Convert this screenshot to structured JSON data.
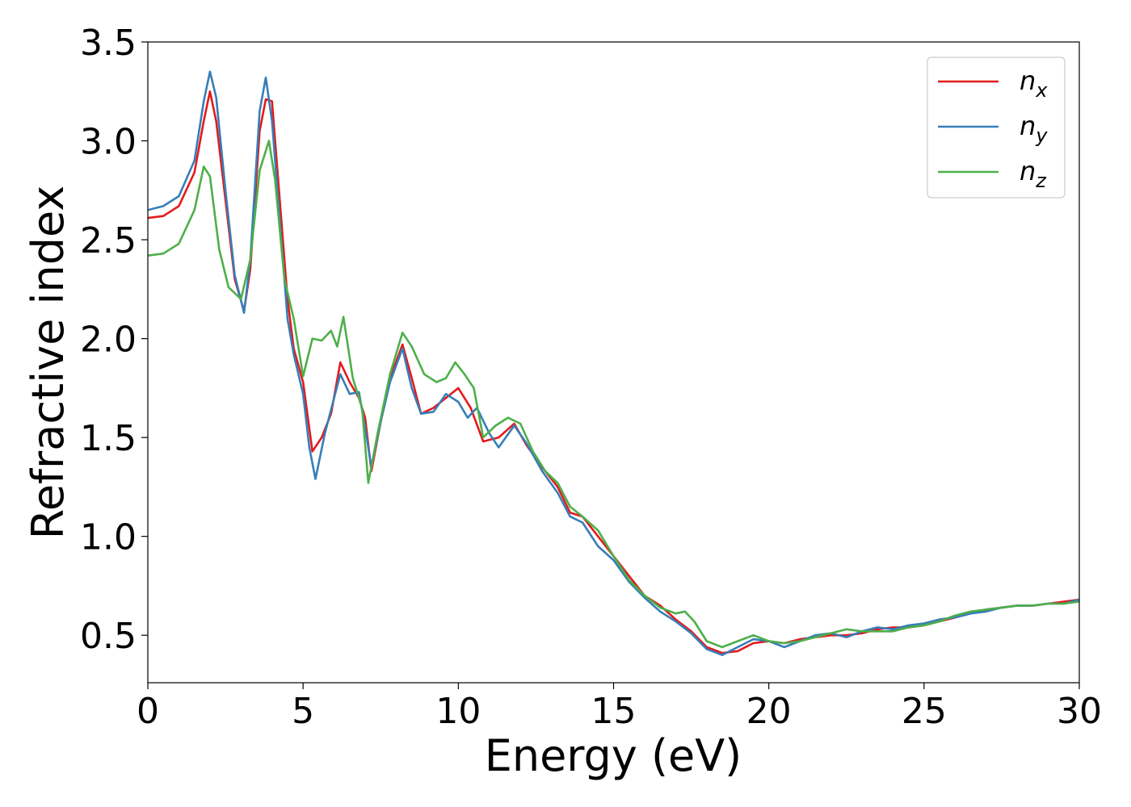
{
  "chart_data": {
    "type": "line",
    "xlabel": "Energy (eV)",
    "ylabel": "Refractive index",
    "xlim": [
      0,
      30
    ],
    "ylim": [
      0.26,
      3.5
    ],
    "xticks": [
      "0",
      "5",
      "10",
      "15",
      "20",
      "25",
      "30"
    ],
    "yticks": [
      "0.5",
      "1.0",
      "1.5",
      "2.0",
      "2.5",
      "3.0",
      "3.5"
    ],
    "grid": false,
    "legend_position": "top-right",
    "series": [
      {
        "name": "n",
        "subscript": "x",
        "color": "#e41a1c",
        "points": [
          [
            0,
            2.61
          ],
          [
            0.5,
            2.62
          ],
          [
            1.0,
            2.67
          ],
          [
            1.5,
            2.84
          ],
          [
            1.8,
            3.1
          ],
          [
            2.0,
            3.25
          ],
          [
            2.2,
            3.1
          ],
          [
            2.5,
            2.7
          ],
          [
            2.8,
            2.3
          ],
          [
            3.1,
            2.14
          ],
          [
            3.3,
            2.35
          ],
          [
            3.6,
            3.05
          ],
          [
            3.8,
            3.21
          ],
          [
            4.0,
            3.2
          ],
          [
            4.2,
            2.8
          ],
          [
            4.5,
            2.2
          ],
          [
            4.7,
            1.95
          ],
          [
            5.0,
            1.78
          ],
          [
            5.3,
            1.43
          ],
          [
            5.6,
            1.5
          ],
          [
            5.9,
            1.62
          ],
          [
            6.2,
            1.88
          ],
          [
            6.5,
            1.78
          ],
          [
            6.8,
            1.7
          ],
          [
            7.0,
            1.6
          ],
          [
            7.2,
            1.33
          ],
          [
            7.5,
            1.58
          ],
          [
            7.8,
            1.8
          ],
          [
            8.2,
            1.97
          ],
          [
            8.5,
            1.8
          ],
          [
            8.8,
            1.62
          ],
          [
            9.2,
            1.65
          ],
          [
            9.6,
            1.7
          ],
          [
            10.0,
            1.75
          ],
          [
            10.4,
            1.65
          ],
          [
            10.8,
            1.48
          ],
          [
            11.3,
            1.5
          ],
          [
            11.8,
            1.57
          ],
          [
            12.2,
            1.46
          ],
          [
            12.7,
            1.35
          ],
          [
            13.2,
            1.25
          ],
          [
            13.6,
            1.12
          ],
          [
            14.0,
            1.1
          ],
          [
            14.5,
            1.0
          ],
          [
            15.0,
            0.9
          ],
          [
            15.5,
            0.8
          ],
          [
            16.0,
            0.7
          ],
          [
            16.5,
            0.65
          ],
          [
            17.0,
            0.58
          ],
          [
            17.5,
            0.52
          ],
          [
            18.0,
            0.44
          ],
          [
            18.5,
            0.41
          ],
          [
            19.0,
            0.42
          ],
          [
            19.5,
            0.46
          ],
          [
            20.0,
            0.47
          ],
          [
            20.5,
            0.46
          ],
          [
            21.0,
            0.48
          ],
          [
            21.5,
            0.49
          ],
          [
            22.0,
            0.5
          ],
          [
            22.5,
            0.5
          ],
          [
            23.0,
            0.51
          ],
          [
            23.5,
            0.53
          ],
          [
            24.0,
            0.54
          ],
          [
            24.5,
            0.54
          ],
          [
            25.0,
            0.55
          ],
          [
            25.5,
            0.57
          ],
          [
            26.0,
            0.59
          ],
          [
            26.5,
            0.61
          ],
          [
            27.0,
            0.63
          ],
          [
            27.5,
            0.64
          ],
          [
            28.0,
            0.65
          ],
          [
            28.5,
            0.65
          ],
          [
            29.0,
            0.66
          ],
          [
            29.5,
            0.67
          ],
          [
            30.0,
            0.68
          ]
        ]
      },
      {
        "name": "n",
        "subscript": "y",
        "color": "#377eb8",
        "points": [
          [
            0,
            2.65
          ],
          [
            0.5,
            2.67
          ],
          [
            1.0,
            2.72
          ],
          [
            1.5,
            2.9
          ],
          [
            1.8,
            3.2
          ],
          [
            2.0,
            3.35
          ],
          [
            2.2,
            3.22
          ],
          [
            2.5,
            2.75
          ],
          [
            2.8,
            2.32
          ],
          [
            3.1,
            2.13
          ],
          [
            3.3,
            2.4
          ],
          [
            3.6,
            3.15
          ],
          [
            3.8,
            3.32
          ],
          [
            4.0,
            3.1
          ],
          [
            4.2,
            2.7
          ],
          [
            4.5,
            2.1
          ],
          [
            4.7,
            1.92
          ],
          [
            5.0,
            1.72
          ],
          [
            5.2,
            1.45
          ],
          [
            5.4,
            1.29
          ],
          [
            5.7,
            1.52
          ],
          [
            6.0,
            1.7
          ],
          [
            6.2,
            1.82
          ],
          [
            6.5,
            1.72
          ],
          [
            6.8,
            1.73
          ],
          [
            7.0,
            1.55
          ],
          [
            7.2,
            1.35
          ],
          [
            7.5,
            1.58
          ],
          [
            7.8,
            1.78
          ],
          [
            8.2,
            1.95
          ],
          [
            8.5,
            1.75
          ],
          [
            8.8,
            1.62
          ],
          [
            9.2,
            1.63
          ],
          [
            9.6,
            1.72
          ],
          [
            10.0,
            1.68
          ],
          [
            10.3,
            1.6
          ],
          [
            10.6,
            1.65
          ],
          [
            11.0,
            1.52
          ],
          [
            11.3,
            1.45
          ],
          [
            11.8,
            1.56
          ],
          [
            12.2,
            1.47
          ],
          [
            12.7,
            1.33
          ],
          [
            13.2,
            1.22
          ],
          [
            13.6,
            1.1
          ],
          [
            14.0,
            1.07
          ],
          [
            14.5,
            0.95
          ],
          [
            15.0,
            0.88
          ],
          [
            15.5,
            0.77
          ],
          [
            16.0,
            0.69
          ],
          [
            16.5,
            0.62
          ],
          [
            17.0,
            0.57
          ],
          [
            17.5,
            0.51
          ],
          [
            18.0,
            0.43
          ],
          [
            18.5,
            0.4
          ],
          [
            19.0,
            0.44
          ],
          [
            19.5,
            0.48
          ],
          [
            20.0,
            0.47
          ],
          [
            20.5,
            0.44
          ],
          [
            21.0,
            0.47
          ],
          [
            21.5,
            0.5
          ],
          [
            22.0,
            0.51
          ],
          [
            22.5,
            0.49
          ],
          [
            23.0,
            0.52
          ],
          [
            23.5,
            0.54
          ],
          [
            24.0,
            0.53
          ],
          [
            24.5,
            0.55
          ],
          [
            25.0,
            0.56
          ],
          [
            25.5,
            0.58
          ],
          [
            26.0,
            0.59
          ],
          [
            26.5,
            0.61
          ],
          [
            27.0,
            0.62
          ],
          [
            27.5,
            0.64
          ],
          [
            28.0,
            0.65
          ],
          [
            28.5,
            0.65
          ],
          [
            29.0,
            0.66
          ],
          [
            29.5,
            0.66
          ],
          [
            30.0,
            0.68
          ]
        ]
      },
      {
        "name": "n",
        "subscript": "z",
        "color": "#4daf4a",
        "points": [
          [
            0,
            2.42
          ],
          [
            0.5,
            2.43
          ],
          [
            1.0,
            2.48
          ],
          [
            1.5,
            2.65
          ],
          [
            1.8,
            2.87
          ],
          [
            2.0,
            2.82
          ],
          [
            2.3,
            2.45
          ],
          [
            2.6,
            2.26
          ],
          [
            3.0,
            2.2
          ],
          [
            3.3,
            2.4
          ],
          [
            3.6,
            2.85
          ],
          [
            3.9,
            3.0
          ],
          [
            4.1,
            2.8
          ],
          [
            4.4,
            2.3
          ],
          [
            4.7,
            2.1
          ],
          [
            5.0,
            1.81
          ],
          [
            5.3,
            2.0
          ],
          [
            5.6,
            1.99
          ],
          [
            5.9,
            2.04
          ],
          [
            6.1,
            1.96
          ],
          [
            6.3,
            2.11
          ],
          [
            6.6,
            1.8
          ],
          [
            6.9,
            1.65
          ],
          [
            7.1,
            1.27
          ],
          [
            7.4,
            1.52
          ],
          [
            7.8,
            1.82
          ],
          [
            8.2,
            2.03
          ],
          [
            8.5,
            1.96
          ],
          [
            8.9,
            1.82
          ],
          [
            9.3,
            1.78
          ],
          [
            9.6,
            1.8
          ],
          [
            9.9,
            1.88
          ],
          [
            10.2,
            1.82
          ],
          [
            10.5,
            1.75
          ],
          [
            10.8,
            1.5
          ],
          [
            11.2,
            1.56
          ],
          [
            11.6,
            1.6
          ],
          [
            12.0,
            1.57
          ],
          [
            12.4,
            1.43
          ],
          [
            12.8,
            1.33
          ],
          [
            13.2,
            1.27
          ],
          [
            13.6,
            1.15
          ],
          [
            14.0,
            1.1
          ],
          [
            14.5,
            1.03
          ],
          [
            15.0,
            0.9
          ],
          [
            15.5,
            0.78
          ],
          [
            16.0,
            0.7
          ],
          [
            16.5,
            0.64
          ],
          [
            17.0,
            0.61
          ],
          [
            17.3,
            0.62
          ],
          [
            17.6,
            0.57
          ],
          [
            18.0,
            0.47
          ],
          [
            18.5,
            0.44
          ],
          [
            19.0,
            0.47
          ],
          [
            19.5,
            0.5
          ],
          [
            20.0,
            0.47
          ],
          [
            20.5,
            0.46
          ],
          [
            21.0,
            0.47
          ],
          [
            21.5,
            0.49
          ],
          [
            22.0,
            0.51
          ],
          [
            22.5,
            0.53
          ],
          [
            23.0,
            0.52
          ],
          [
            23.5,
            0.52
          ],
          [
            24.0,
            0.52
          ],
          [
            24.5,
            0.54
          ],
          [
            25.0,
            0.55
          ],
          [
            25.5,
            0.57
          ],
          [
            26.0,
            0.6
          ],
          [
            26.5,
            0.62
          ],
          [
            27.0,
            0.63
          ],
          [
            27.5,
            0.64
          ],
          [
            28.0,
            0.65
          ],
          [
            28.5,
            0.65
          ],
          [
            29.0,
            0.66
          ],
          [
            29.5,
            0.66
          ],
          [
            30.0,
            0.67
          ]
        ]
      }
    ]
  }
}
